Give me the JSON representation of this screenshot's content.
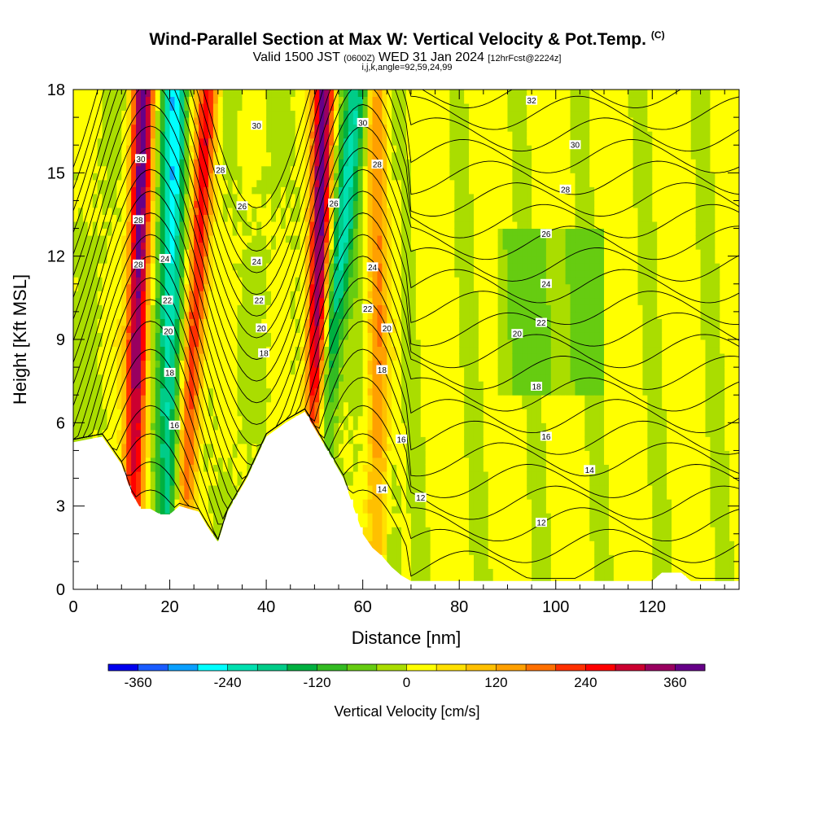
{
  "header": {
    "title": "Wind-Parallel Section at Max W: Vertical Velocity & Pot.Temp.",
    "title_tag": "(C)",
    "subtitle_main": "Valid 1500 JST",
    "subtitle_utc": "(0600Z)",
    "subtitle_date": "WED 31 Jan 2024",
    "subtitle_fcst": "[12hrFcst@2224z]",
    "indices": "i,j,k,angle=92,59,24,99"
  },
  "chart_data": {
    "type": "heatmap",
    "xlabel": "Distance [nm]",
    "ylabel": "Height [Kft MSL]",
    "xlim": [
      0,
      138
    ],
    "ylim": [
      0,
      18
    ],
    "x_ticks": [
      "0",
      "20",
      "40",
      "60",
      "80",
      "100",
      "120"
    ],
    "y_ticks": [
      "0",
      "3",
      "6",
      "9",
      "12",
      "15",
      "18"
    ],
    "colorbar": {
      "label": "Vertical Velocity [cm/s]",
      "tick_labels": [
        "-360",
        "-240",
        "-120",
        "0",
        "120",
        "240",
        "360"
      ],
      "colors": [
        "#0000ee",
        "#1a5cff",
        "#0aa0ff",
        "#00ffff",
        "#00e0b0",
        "#00cc88",
        "#00b040",
        "#33bb22",
        "#66cc11",
        "#aadd00",
        "#ffff00",
        "#ffe000",
        "#ffc000",
        "#ffa000",
        "#ff7000",
        "#ff3000",
        "#ff0000",
        "#cc0030",
        "#990060",
        "#660088"
      ]
    },
    "terrain_profile": {
      "x": [
        0,
        6,
        10,
        12,
        14,
        16,
        18,
        20,
        22,
        24,
        26,
        28,
        30,
        32,
        36,
        40,
        44,
        48,
        52,
        56,
        60,
        62,
        64,
        66,
        68,
        70,
        80,
        100,
        120,
        122,
        124,
        126,
        128,
        130,
        138
      ],
      "h": [
        5.3,
        5.5,
        4.5,
        3.5,
        2.9,
        2.9,
        2.7,
        2.7,
        3.0,
        2.9,
        2.8,
        2.2,
        1.7,
        2.8,
        4.0,
        5.5,
        6.0,
        6.4,
        5.2,
        4.0,
        2.0,
        1.5,
        1.2,
        0.8,
        0.5,
        0.3,
        0.3,
        0.3,
        0.3,
        0.6,
        0.6,
        0.6,
        0.3,
        0.3,
        0.3
      ]
    },
    "updrafts": [
      {
        "x_top": 14.5,
        "x_bottom": 12,
        "peak_cm_s": 380
      },
      {
        "x_top": 28,
        "x_bottom": 22,
        "peak_cm_s": 260
      },
      {
        "x_top": 52,
        "x_bottom": 49,
        "peak_cm_s": 380
      },
      {
        "x_top": 63,
        "x_bottom": 63,
        "peak_cm_s": 160
      }
    ],
    "downdrafts": [
      {
        "x_top": 21,
        "x_bottom": 19,
        "peak_cm_s": -260
      },
      {
        "x_top": 59,
        "x_bottom": 48,
        "peak_cm_s": -220
      }
    ],
    "theta_label_values": [
      "12",
      "14",
      "16",
      "18",
      "20",
      "22",
      "24",
      "26",
      "28",
      "30",
      "32"
    ],
    "theta_labels": [
      {
        "text": "30",
        "x": 14,
        "y": 15.5
      },
      {
        "text": "28",
        "x": 13.5,
        "y": 13.3
      },
      {
        "text": "28",
        "x": 13.5,
        "y": 11.7
      },
      {
        "text": "24",
        "x": 19,
        "y": 11.9
      },
      {
        "text": "22",
        "x": 19.5,
        "y": 10.4
      },
      {
        "text": "20",
        "x": 19.7,
        "y": 9.3
      },
      {
        "text": "18",
        "x": 20,
        "y": 7.8
      },
      {
        "text": "16",
        "x": 21,
        "y": 5.9
      },
      {
        "text": "28",
        "x": 30.5,
        "y": 15.1
      },
      {
        "text": "26",
        "x": 35,
        "y": 13.8
      },
      {
        "text": "24",
        "x": 38,
        "y": 11.8
      },
      {
        "text": "22",
        "x": 38.5,
        "y": 10.4
      },
      {
        "text": "20",
        "x": 39,
        "y": 9.4
      },
      {
        "text": "18",
        "x": 39.5,
        "y": 8.5
      },
      {
        "text": "30",
        "x": 38,
        "y": 16.7
      },
      {
        "text": "30",
        "x": 60,
        "y": 16.8
      },
      {
        "text": "28",
        "x": 63,
        "y": 15.3
      },
      {
        "text": "26",
        "x": 54,
        "y": 13.9
      },
      {
        "text": "24",
        "x": 62,
        "y": 11.6
      },
      {
        "text": "22",
        "x": 61,
        "y": 10.1
      },
      {
        "text": "20",
        "x": 65,
        "y": 9.4
      },
      {
        "text": "18",
        "x": 64,
        "y": 7.9
      },
      {
        "text": "16",
        "x": 68,
        "y": 5.4
      },
      {
        "text": "14",
        "x": 64,
        "y": 3.6
      },
      {
        "text": "12",
        "x": 72,
        "y": 3.3
      },
      {
        "text": "32",
        "x": 95,
        "y": 17.6
      },
      {
        "text": "30",
        "x": 104,
        "y": 16.0
      },
      {
        "text": "28",
        "x": 102,
        "y": 14.4
      },
      {
        "text": "26",
        "x": 98,
        "y": 12.8
      },
      {
        "text": "24",
        "x": 98,
        "y": 11.0
      },
      {
        "text": "22",
        "x": 97,
        "y": 9.6
      },
      {
        "text": "20",
        "x": 92,
        "y": 9.2
      },
      {
        "text": "18",
        "x": 96,
        "y": 7.3
      },
      {
        "text": "16",
        "x": 98,
        "y": 5.5
      },
      {
        "text": "14",
        "x": 107,
        "y": 4.3
      },
      {
        "text": "12",
        "x": 97,
        "y": 2.4
      }
    ]
  }
}
